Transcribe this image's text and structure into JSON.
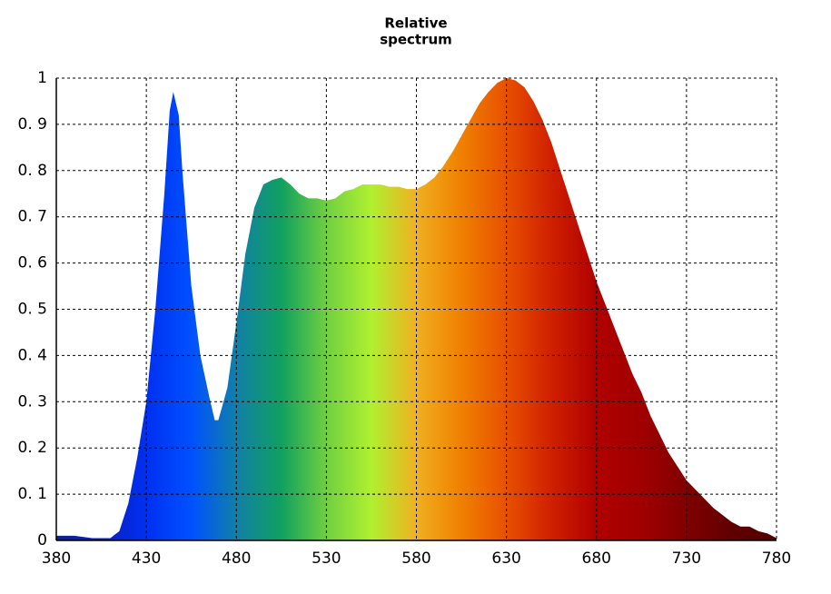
{
  "chart_data": {
    "type": "area",
    "title": [
      "Relative",
      "spectrum"
    ],
    "x": [
      380,
      390,
      400,
      410,
      415,
      420,
      425,
      430,
      435,
      440,
      443,
      445,
      448,
      450,
      455,
      460,
      465,
      468,
      470,
      475,
      480,
      485,
      490,
      495,
      500,
      505,
      510,
      515,
      520,
      525,
      530,
      535,
      540,
      545,
      550,
      555,
      560,
      565,
      570,
      575,
      580,
      585,
      590,
      595,
      600,
      605,
      610,
      615,
      620,
      625,
      630,
      635,
      640,
      645,
      650,
      655,
      660,
      665,
      670,
      675,
      680,
      685,
      690,
      695,
      700,
      705,
      710,
      715,
      720,
      725,
      730,
      735,
      740,
      745,
      750,
      755,
      760,
      765,
      770,
      775,
      780
    ],
    "values": [
      0.01,
      0.01,
      0.005,
      0.005,
      0.02,
      0.08,
      0.18,
      0.3,
      0.5,
      0.75,
      0.93,
      0.97,
      0.92,
      0.8,
      0.55,
      0.4,
      0.31,
      0.26,
      0.26,
      0.33,
      0.47,
      0.62,
      0.72,
      0.77,
      0.78,
      0.785,
      0.77,
      0.75,
      0.74,
      0.74,
      0.735,
      0.74,
      0.755,
      0.76,
      0.77,
      0.77,
      0.77,
      0.765,
      0.765,
      0.76,
      0.76,
      0.77,
      0.785,
      0.81,
      0.84,
      0.875,
      0.91,
      0.945,
      0.97,
      0.99,
      1.0,
      0.995,
      0.98,
      0.95,
      0.91,
      0.86,
      0.8,
      0.74,
      0.68,
      0.62,
      0.56,
      0.51,
      0.46,
      0.41,
      0.36,
      0.32,
      0.27,
      0.23,
      0.19,
      0.16,
      0.13,
      0.11,
      0.09,
      0.07,
      0.055,
      0.04,
      0.03,
      0.03,
      0.02,
      0.015,
      0.005
    ],
    "colors": [
      "#10208a",
      "#0a1ec0",
      "#0030f0",
      "#0050ff",
      "#1080a8",
      "#10a060",
      "#70d040",
      "#b0f030",
      "#f0b020",
      "#f08000",
      "#e85000",
      "#d02000",
      "#b00000",
      "#a00000",
      "#800000",
      "#600000",
      "#500000"
    ],
    "xlim": [
      380,
      780
    ],
    "xticks": [
      380,
      430,
      480,
      530,
      580,
      630,
      680,
      730,
      780
    ],
    "ylim": [
      0,
      1
    ],
    "yticks": [
      0,
      {
        "value": 0.1,
        "label": "0. 1"
      },
      {
        "value": 0.2,
        "label": "0. 2"
      },
      {
        "value": 0.3,
        "label": "0. 3"
      },
      {
        "value": 0.4,
        "label": "0. 4"
      },
      {
        "value": 0.5,
        "label": "0. 5"
      },
      {
        "value": 0.6,
        "label": "0. 6"
      },
      {
        "value": 0.7,
        "label": "0. 7"
      },
      {
        "value": 0.8,
        "label": "0. 8"
      },
      {
        "value": 0.9,
        "label": "0. 9"
      },
      1
    ],
    "grid": true
  }
}
